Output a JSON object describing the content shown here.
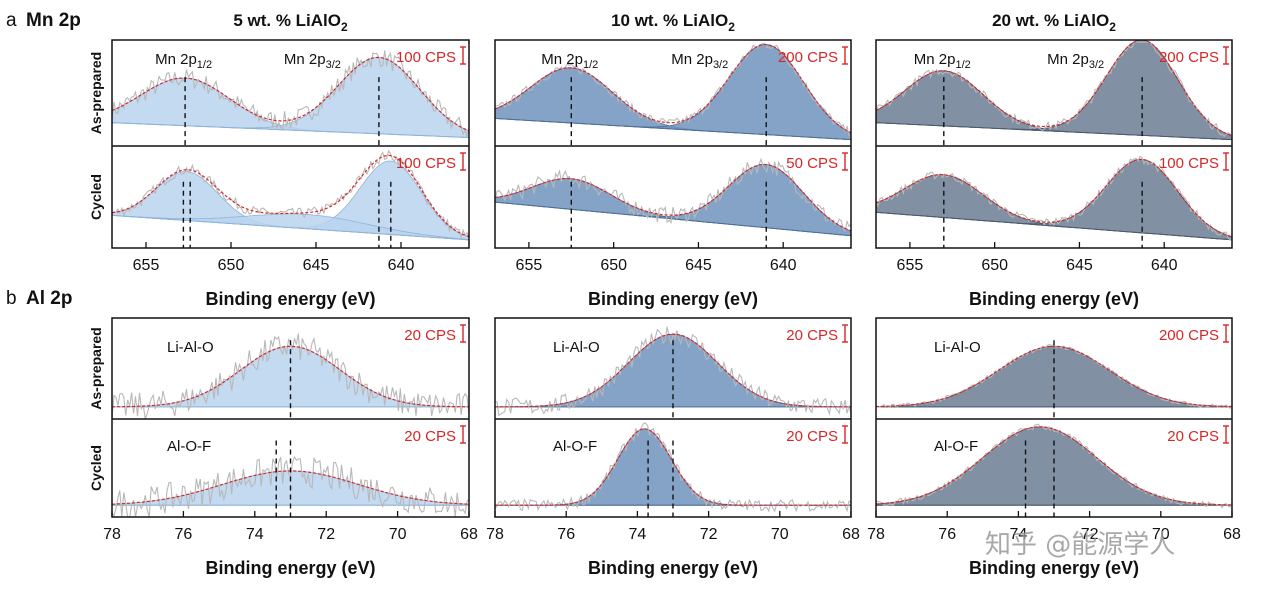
{
  "chart_data": {
    "type": "line",
    "rows": [
      {
        "section": "a",
        "element": "Mn 2p",
        "x_range": [
          657,
          636
        ],
        "x_ticks": [
          655,
          650,
          645,
          640
        ],
        "x_ticks_text": [
          "655",
          "650",
          "645",
          "640"
        ]
      },
      {
        "section": "b",
        "element": "Al 2p",
        "x_range": [
          78,
          68
        ],
        "x_ticks": [
          78,
          76,
          74,
          72,
          70,
          68
        ],
        "x_ticks_text": [
          "78",
          "76",
          "74",
          "72",
          "70",
          "68"
        ]
      }
    ],
    "columns": [
      {
        "title_main": "5 wt. % LiAlO",
        "title_sub": "2",
        "fill": "#b9d4ee",
        "edge": "#8fb3d8"
      },
      {
        "title_main": "10 wt. % LiAlO",
        "title_sub": "2",
        "fill": "#6f93bd",
        "edge": "#4d6f98"
      },
      {
        "title_main": "20 wt. % LiAlO",
        "title_sub": "2",
        "fill": "#6b7d93",
        "edge": "#4a5a6e"
      }
    ],
    "xlabel": "Binding energy (eV)",
    "ylabels": [
      "As-prepared",
      "Cycled"
    ],
    "mn_peaks": {
      "p12_label": "Mn 2p",
      "p12_sub": "1/2",
      "p32_label": "Mn 2p",
      "p32_sub": "3/2"
    },
    "panels": {
      "mn": [
        {
          "asprep": {
            "cps": "100 CPS",
            "peaks": [
              {
                "pos": 652.7,
                "h": 0.45,
                "w": 2.6
              },
              {
                "pos": 641.3,
                "h": 0.72,
                "w": 2.4
              }
            ],
            "dashes": [
              652.7,
              641.3
            ],
            "bg": [
              0.22,
              0.08
            ],
            "noise": 0.09
          },
          "cycled": {
            "cps": "100 CPS",
            "peaks": [
              {
                "pos": 652.6,
                "h": 0.48,
                "w": 1.8
              },
              {
                "pos": 640.6,
                "h": 0.72,
                "w": 1.8
              },
              {
                "pos": 645.5,
                "h": 0.14,
                "w": 3.5
              }
            ],
            "dashes": [
              652.8,
              652.4,
              641.3,
              640.6
            ],
            "bg": [
              0.32,
              0.08
            ],
            "noise": 0.05
          }
        },
        {
          "asprep": {
            "cps": "200 CPS",
            "peaks": [
              {
                "pos": 652.5,
                "h": 0.52,
                "w": 2.4
              },
              {
                "pos": 641.0,
                "h": 0.85,
                "w": 2.2
              }
            ],
            "dashes": [
              652.5,
              641.0
            ],
            "bg": [
              0.26,
              0.06
            ],
            "noise": 0.04
          },
          "cycled": {
            "cps": "50 CPS",
            "peaks": [
              {
                "pos": 652.5,
                "h": 0.3,
                "w": 2.3
              },
              {
                "pos": 641.0,
                "h": 0.62,
                "w": 2.2
              }
            ],
            "dashes": [
              652.5,
              641.0
            ],
            "bg": [
              0.45,
              0.12
            ],
            "noise": 0.08
          }
        },
        {
          "asprep": {
            "cps": "200 CPS",
            "peaks": [
              {
                "pos": 653.0,
                "h": 0.52,
                "w": 2.3
              },
              {
                "pos": 641.3,
                "h": 0.9,
                "w": 2.1
              }
            ],
            "dashes": [
              653.0,
              641.3
            ],
            "bg": [
              0.22,
              0.06
            ],
            "noise": 0.04
          },
          "cycled": {
            "cps": "100 CPS",
            "peaks": [
              {
                "pos": 653.0,
                "h": 0.42,
                "w": 2.3
              },
              {
                "pos": 641.3,
                "h": 0.72,
                "w": 2.1
              }
            ],
            "dashes": [
              653.0,
              641.3
            ],
            "bg": [
              0.35,
              0.08
            ],
            "noise": 0.04
          }
        }
      ],
      "al": [
        {
          "asprep": {
            "cps": "20 CPS",
            "label": "Li-Al-O",
            "peak": {
              "pos": 73.0,
              "h": 0.6,
              "w": 1.4
            },
            "dashes": [
              73.0
            ],
            "noise": 0.14
          },
          "cycled": {
            "cps": "20 CPS",
            "label": "Al-O-F",
            "peak": {
              "pos": 73.0,
              "h": 0.35,
              "w": 1.9
            },
            "dashes": [
              73.4,
              73.0
            ],
            "noise": 0.16
          }
        },
        {
          "asprep": {
            "cps": "20 CPS",
            "label": "Li-Al-O",
            "peak": {
              "pos": 73.0,
              "h": 0.72,
              "w": 1.25
            },
            "dashes": [
              73.0
            ],
            "noise": 0.09
          },
          "cycled": {
            "cps": "20 CPS",
            "label": "Al-O-F",
            "peak": {
              "pos": 73.8,
              "h": 0.78,
              "w": 0.75
            },
            "dashes": [
              73.7,
              73.0
            ],
            "noise": 0.06
          }
        },
        {
          "asprep": {
            "cps": "200 CPS",
            "label": "Li-Al-O",
            "peak": {
              "pos": 73.0,
              "h": 0.6,
              "w": 1.55
            },
            "dashes": [
              73.0
            ],
            "noise": 0.02
          },
          "cycled": {
            "cps": "20 CPS",
            "label": "Al-O-F",
            "peak": {
              "pos": 73.4,
              "h": 0.8,
              "w": 1.6
            },
            "dashes": [
              73.8,
              73.0
            ],
            "noise": 0.03
          }
        }
      ]
    }
  },
  "labels": {
    "a_letter": "a",
    "a_element": "Mn 2p",
    "b_letter": "b",
    "b_element": "Al 2p",
    "watermark": "知乎 @能源学人"
  }
}
